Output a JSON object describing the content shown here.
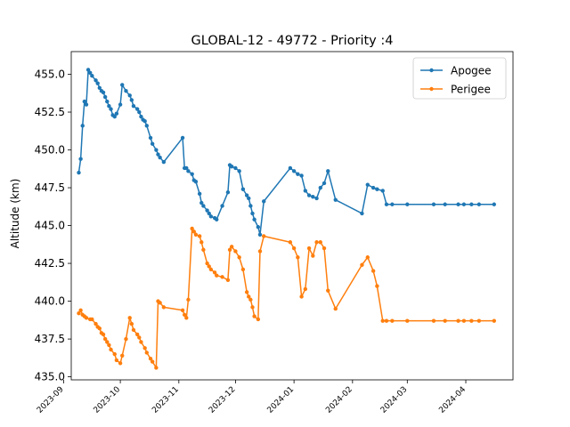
{
  "chart_data": {
    "type": "line",
    "title": "GLOBAL-12 - 49772 - Priority :4",
    "xlabel": "",
    "ylabel": "Altitude (km)",
    "xlim": [
      "2023-09-05",
      "2024-04-26"
    ],
    "ylim": [
      434.8,
      456.5
    ],
    "x_ticks": [
      "2023-09",
      "2023-10",
      "2023-11",
      "2023-12",
      "2024-01",
      "2024-02",
      "2024-03",
      "2024-04"
    ],
    "y_ticks": [
      435.0,
      437.5,
      440.0,
      442.5,
      445.0,
      447.5,
      450.0,
      452.5,
      455.0
    ],
    "y_tick_labels": [
      "435.0",
      "437.5",
      "440.0",
      "442.5",
      "445.0",
      "447.5",
      "450.0",
      "452.5",
      "455.0"
    ],
    "grid": false,
    "legend_position": "top-right",
    "series": [
      {
        "name": "Apogee",
        "color": "#1f77b4",
        "x": [
          "2023-09-09",
          "2023-09-10",
          "2023-09-11",
          "2023-09-12",
          "2023-09-13",
          "2023-09-14",
          "2023-09-15",
          "2023-09-16",
          "2023-09-18",
          "2023-09-19",
          "2023-09-20",
          "2023-09-21",
          "2023-09-22",
          "2023-09-23",
          "2023-09-24",
          "2023-09-25",
          "2023-09-26",
          "2023-09-27",
          "2023-09-28",
          "2023-09-29",
          "2023-10-01",
          "2023-10-02",
          "2023-10-04",
          "2023-10-06",
          "2023-10-07",
          "2023-10-08",
          "2023-10-10",
          "2023-10-11",
          "2023-10-12",
          "2023-10-13",
          "2023-10-14",
          "2023-10-15",
          "2023-10-17",
          "2023-10-18",
          "2023-10-20",
          "2023-10-21",
          "2023-10-22",
          "2023-10-24",
          "2023-11-03",
          "2023-11-04",
          "2023-11-05",
          "2023-11-06",
          "2023-11-08",
          "2023-11-09",
          "2023-11-10",
          "2023-11-12",
          "2023-11-13",
          "2023-11-14",
          "2023-11-16",
          "2023-11-17",
          "2023-11-18",
          "2023-11-20",
          "2023-11-21",
          "2023-11-24",
          "2023-11-27",
          "2023-11-28",
          "2023-11-29",
          "2023-12-01",
          "2023-12-03",
          "2023-12-05",
          "2023-12-07",
          "2023-12-08",
          "2023-12-09",
          "2023-12-10",
          "2023-12-11",
          "2023-12-13",
          "2023-12-14",
          "2023-12-16",
          "2023-12-30",
          "2024-01-01",
          "2024-01-03",
          "2024-01-05",
          "2024-01-07",
          "2024-01-09",
          "2024-01-11",
          "2024-01-13",
          "2024-01-15",
          "2024-01-17",
          "2024-01-19",
          "2024-01-23",
          "2024-02-06",
          "2024-02-09",
          "2024-02-12",
          "2024-02-14",
          "2024-02-17",
          "2024-02-19",
          "2024-02-22",
          "2024-03-01",
          "2024-03-15",
          "2024-03-21",
          "2024-03-28",
          "2024-03-31",
          "2024-04-04",
          "2024-04-08",
          "2024-04-16"
        ],
        "values": [
          448.5,
          449.4,
          451.6,
          453.2,
          453.0,
          455.3,
          455.1,
          454.9,
          454.6,
          454.4,
          454.1,
          453.9,
          453.8,
          453.5,
          453.2,
          452.9,
          452.7,
          452.3,
          452.2,
          452.4,
          453.0,
          454.3,
          453.9,
          453.6,
          453.3,
          452.9,
          452.7,
          452.5,
          452.2,
          452.0,
          451.9,
          451.6,
          450.8,
          450.4,
          450.0,
          449.7,
          449.5,
          449.2,
          450.8,
          448.8,
          448.8,
          448.6,
          448.4,
          448.0,
          447.9,
          447.1,
          446.5,
          446.3,
          446.0,
          445.8,
          445.6,
          445.5,
          445.4,
          446.3,
          447.2,
          449.0,
          448.9,
          448.8,
          448.6,
          447.4,
          447.0,
          446.8,
          446.3,
          445.8,
          445.4,
          444.9,
          444.4,
          446.6,
          448.8,
          448.6,
          448.4,
          448.3,
          447.3,
          447.0,
          446.9,
          446.8,
          447.5,
          447.8,
          448.6,
          446.7,
          445.8,
          447.7,
          447.5,
          447.4,
          447.3,
          446.4,
          446.4,
          446.4,
          446.4,
          446.4,
          446.4,
          446.4,
          446.4,
          446.4,
          446.4
        ]
      },
      {
        "name": "Perigee",
        "color": "#ff7f0e",
        "x": [
          "2023-09-09",
          "2023-09-10",
          "2023-09-11",
          "2023-09-12",
          "2023-09-13",
          "2023-09-15",
          "2023-09-16",
          "2023-09-18",
          "2023-09-19",
          "2023-09-20",
          "2023-09-21",
          "2023-09-22",
          "2023-09-23",
          "2023-09-24",
          "2023-09-25",
          "2023-09-26",
          "2023-09-28",
          "2023-09-29",
          "2023-10-01",
          "2023-10-02",
          "2023-10-04",
          "2023-10-06",
          "2023-10-07",
          "2023-10-08",
          "2023-10-10",
          "2023-10-11",
          "2023-10-12",
          "2023-10-14",
          "2023-10-15",
          "2023-10-17",
          "2023-10-18",
          "2023-10-20",
          "2023-10-21",
          "2023-10-22",
          "2023-10-24",
          "2023-11-03",
          "2023-11-04",
          "2023-11-05",
          "2023-11-06",
          "2023-11-08",
          "2023-11-09",
          "2023-11-10",
          "2023-11-12",
          "2023-11-13",
          "2023-11-14",
          "2023-11-16",
          "2023-11-17",
          "2023-11-18",
          "2023-11-20",
          "2023-11-21",
          "2023-11-24",
          "2023-11-27",
          "2023-11-28",
          "2023-11-29",
          "2023-12-01",
          "2023-12-03",
          "2023-12-05",
          "2023-12-07",
          "2023-12-08",
          "2023-12-09",
          "2023-12-10",
          "2023-12-11",
          "2023-12-13",
          "2023-12-14",
          "2023-12-16",
          "2023-12-30",
          "2024-01-01",
          "2024-01-03",
          "2024-01-05",
          "2024-01-07",
          "2024-01-09",
          "2024-01-11",
          "2024-01-13",
          "2024-01-15",
          "2024-01-17",
          "2024-01-19",
          "2024-01-23",
          "2024-02-06",
          "2024-02-09",
          "2024-02-12",
          "2024-02-14",
          "2024-02-17",
          "2024-02-19",
          "2024-02-22",
          "2024-03-01",
          "2024-03-15",
          "2024-03-21",
          "2024-03-28",
          "2024-03-31",
          "2024-04-04",
          "2024-04-08",
          "2024-04-16"
        ],
        "values": [
          439.2,
          439.4,
          439.1,
          439.0,
          438.9,
          438.8,
          438.8,
          438.5,
          438.3,
          438.2,
          437.9,
          437.8,
          437.5,
          437.3,
          437.1,
          436.8,
          436.5,
          436.1,
          435.9,
          436.4,
          437.5,
          438.9,
          438.5,
          438.1,
          437.8,
          437.6,
          437.3,
          436.9,
          436.6,
          436.2,
          436.0,
          435.6,
          440.0,
          439.9,
          439.6,
          439.4,
          439.1,
          438.9,
          440.1,
          444.8,
          444.6,
          444.4,
          444.3,
          443.9,
          443.4,
          442.5,
          442.3,
          442.1,
          441.9,
          441.7,
          441.6,
          441.4,
          443.4,
          443.6,
          443.3,
          442.9,
          442.1,
          440.6,
          440.3,
          440.1,
          439.6,
          439.0,
          438.8,
          443.3,
          444.3,
          443.9,
          443.5,
          442.9,
          440.3,
          440.8,
          443.5,
          443.0,
          443.9,
          443.9,
          443.5,
          440.7,
          439.5,
          442.4,
          442.9,
          442.0,
          441.0,
          438.7,
          438.7,
          438.7,
          438.7,
          438.7,
          438.7,
          438.7,
          438.7,
          438.7,
          438.7,
          438.7
        ]
      }
    ]
  }
}
